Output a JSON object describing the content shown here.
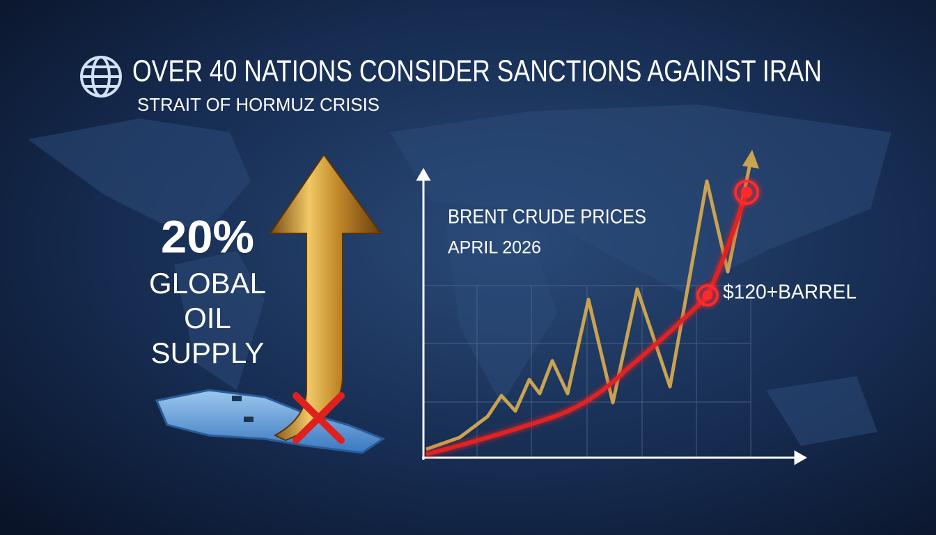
{
  "header": {
    "title": "OVER 40 NATIONS CONSIDER SANCTIONS AGAINST IRAN",
    "subtitle": "STRAIT OF HORMUZ CRISIS"
  },
  "stat": {
    "value": "20%",
    "lines": [
      "GLOBAL",
      "OIL",
      "SUPPLY"
    ]
  },
  "chart": {
    "title": "BRENT CRUDE PRICES",
    "subtitle": "APRIL 2026",
    "annotation": "$120+BARREL"
  }
}
